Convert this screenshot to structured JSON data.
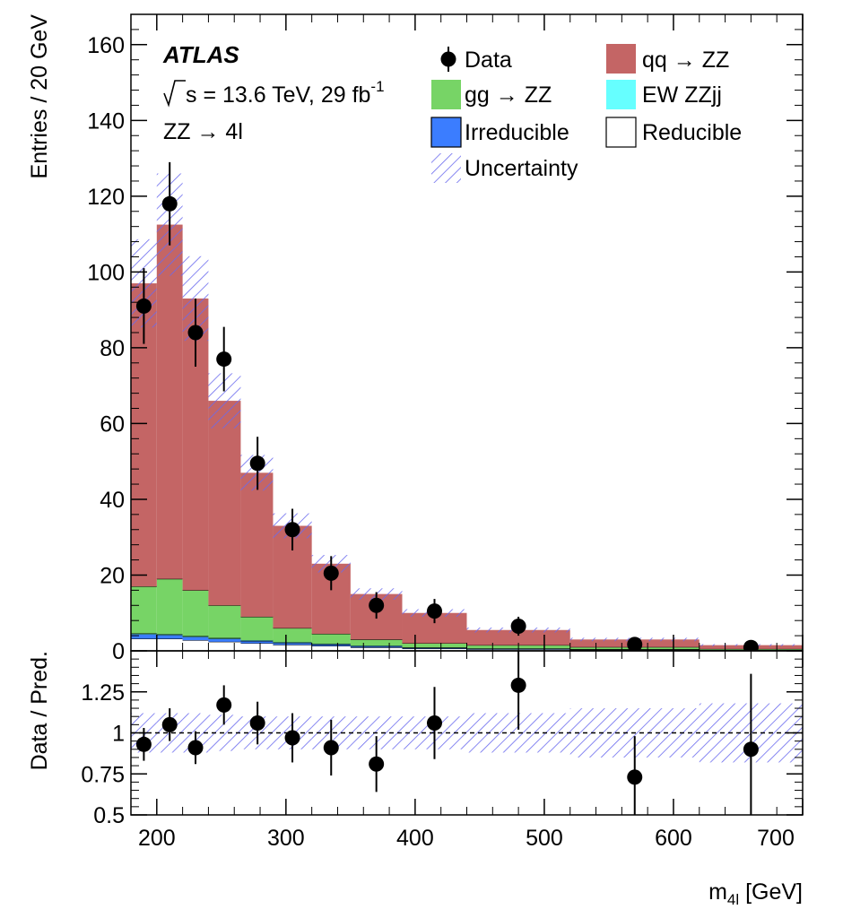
{
  "chart_data": {
    "type": "bar",
    "x_bins": [
      [
        180,
        200
      ],
      [
        200,
        220
      ],
      [
        220,
        240
      ],
      [
        240,
        265
      ],
      [
        265,
        290
      ],
      [
        290,
        320
      ],
      [
        320,
        350
      ],
      [
        350,
        390
      ],
      [
        390,
        440
      ],
      [
        440,
        520
      ],
      [
        520,
        620
      ],
      [
        620,
        700
      ]
    ],
    "series": [
      {
        "name": "Reducible",
        "color": "#ffffff",
        "values": [
          3.2,
          3.2,
          2.8,
          2.4,
          2.0,
          1.6,
          1.3,
          0.9,
          0.6,
          0.4,
          0.25,
          0.1
        ]
      },
      {
        "name": "Irreducible",
        "color": "#3b7dff",
        "values": [
          1.2,
          1.0,
          0.9,
          0.8,
          0.6,
          0.5,
          0.4,
          0.3,
          0.2,
          0.15,
          0.1,
          0.05
        ]
      },
      {
        "name": "EW ZZjj",
        "color": "#66ffff",
        "values": [
          0.2,
          0.2,
          0.2,
          0.2,
          0.2,
          0.2,
          0.2,
          0.2,
          0.1,
          0.1,
          0.1,
          0.05
        ]
      },
      {
        "name": "gg → ZZ",
        "color": "#77d466",
        "values": [
          12.4,
          14.6,
          12.1,
          8.6,
          6.2,
          3.7,
          2.6,
          1.6,
          1.1,
          0.85,
          0.55,
          0.3
        ]
      },
      {
        "name": "qq → ZZ",
        "color": "#c46565",
        "values": [
          80,
          93.5,
          77,
          54,
          38,
          27,
          18.5,
          12,
          8,
          4,
          2.0,
          1.0
        ]
      }
    ],
    "uncertainty_rel": [
      0.12,
      0.12,
      0.12,
      0.11,
      0.1,
      0.1,
      0.1,
      0.1,
      0.1,
      0.12,
      0.15,
      0.18
    ],
    "data_points": [
      {
        "x": 190,
        "y": 91,
        "err": 10
      },
      {
        "x": 210,
        "y": 118,
        "err": 11
      },
      {
        "x": 230,
        "y": 84,
        "err": 9
      },
      {
        "x": 252,
        "y": 77,
        "err": 8.5
      },
      {
        "x": 278,
        "y": 49.5,
        "err": 7
      },
      {
        "x": 305,
        "y": 32,
        "err": 5.5
      },
      {
        "x": 335,
        "y": 20.5,
        "err": 4.5
      },
      {
        "x": 370,
        "y": 12,
        "err": 3.5
      },
      {
        "x": 415,
        "y": 10.5,
        "err": 3.2
      },
      {
        "x": 480,
        "y": 6.5,
        "err": 2.5
      },
      {
        "x": 570,
        "y": 1.7,
        "err": 1.3
      },
      {
        "x": 660,
        "y": 0.9,
        "err": 1.0
      }
    ],
    "ratio_points": [
      {
        "x": 190,
        "y": 0.93,
        "err": 0.1
      },
      {
        "x": 210,
        "y": 1.05,
        "err": 0.1
      },
      {
        "x": 230,
        "y": 0.91,
        "err": 0.1
      },
      {
        "x": 252,
        "y": 1.17,
        "err": 0.12
      },
      {
        "x": 278,
        "y": 1.06,
        "err": 0.13
      },
      {
        "x": 305,
        "y": 0.97,
        "err": 0.15
      },
      {
        "x": 335,
        "y": 0.91,
        "err": 0.17
      },
      {
        "x": 370,
        "y": 0.81,
        "err": 0.17
      },
      {
        "x": 415,
        "y": 1.06,
        "err": 0.22
      },
      {
        "x": 480,
        "y": 1.29,
        "err": 0.27
      },
      {
        "x": 570,
        "y": 0.73,
        "err": 0.25
      },
      {
        "x": 660,
        "y": 0.9,
        "err": 0.46
      }
    ],
    "xlim": [
      180,
      700
    ],
    "ylim": [
      0,
      168
    ],
    "ratio_ylim": [
      0.5,
      1.5
    ],
    "x_ticks": [
      200,
      300,
      400,
      500,
      600,
      700
    ],
    "y_ticks": [
      0,
      20,
      40,
      60,
      80,
      100,
      120,
      140,
      160
    ],
    "ratio_ticks": [
      {
        "v": 0.5,
        "label": "0.5"
      },
      {
        "v": 0.75,
        "label": "0.75"
      },
      {
        "v": 1.0,
        "label": "1"
      },
      {
        "v": 1.25,
        "label": "1.25"
      }
    ],
    "ylabel": "Entries / 20 GeV",
    "ratio_ylabel": "Data / Pred.",
    "xlabel_main": "m",
    "xlabel_sub": "4l",
    "xlabel_unit": " [GeV]",
    "legend": {
      "data": "Data",
      "qqzz": "qq → ZZ",
      "ggzz": "gg → ZZ",
      "ewzz": "EW ZZjj",
      "irreducible": "Irreducible",
      "reducible": "Reducible",
      "uncertainty": "Uncertainty"
    },
    "annotations": {
      "experiment": "ATLAS",
      "energy_pre": "s = 13.6 TeV, 29 fb",
      "energy_sup": "-1",
      "channel": "ZZ → 4l"
    },
    "grid": false,
    "legend_position": "top-right"
  }
}
